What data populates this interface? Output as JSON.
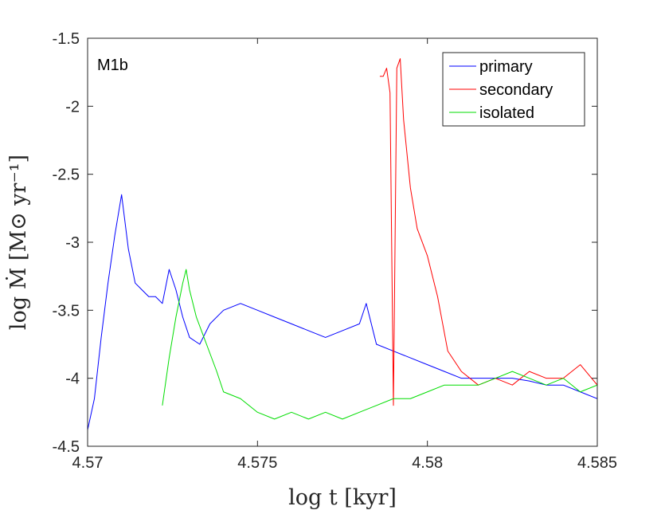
{
  "chart_data": {
    "type": "line",
    "title": "",
    "annotation": "M1b",
    "xlabel": "log t [kyr]",
    "ylabel": "log Ṁ [M⊙ yr⁻¹]",
    "xlim": [
      4.57,
      4.585
    ],
    "ylim": [
      -4.5,
      -1.5
    ],
    "xticks": [
      4.57,
      4.575,
      4.58,
      4.585
    ],
    "xtick_labels": [
      "4.57",
      "4.575",
      "4.58",
      "4.585"
    ],
    "yticks": [
      -1.5,
      -2,
      -2.5,
      -3,
      -3.5,
      -4,
      -4.5
    ],
    "ytick_labels": [
      "-1.5",
      "-2",
      "-2.5",
      "-3",
      "-3.5",
      "-4",
      "-4.5"
    ],
    "grid": false,
    "legend_position": "top-right",
    "series": [
      {
        "name": "primary",
        "color": "#0000ff",
        "x": [
          4.57,
          4.5702,
          4.5704,
          4.5706,
          4.5708,
          4.571,
          4.5712,
          4.5714,
          4.5716,
          4.5718,
          4.572,
          4.5722,
          4.5724,
          4.5726,
          4.5728,
          4.573,
          4.5733,
          4.5736,
          4.574,
          4.5745,
          4.575,
          4.5755,
          4.576,
          4.5765,
          4.577,
          4.5775,
          4.578,
          4.5782,
          4.5785,
          4.579,
          4.5795,
          4.58,
          4.5805,
          4.581,
          4.5815,
          4.582,
          4.5825,
          4.583,
          4.5835,
          4.584,
          4.5845,
          4.585
        ],
        "y": [
          -4.38,
          -4.15,
          -3.7,
          -3.3,
          -2.95,
          -2.65,
          -3.05,
          -3.3,
          -3.35,
          -3.4,
          -3.4,
          -3.45,
          -3.2,
          -3.35,
          -3.55,
          -3.7,
          -3.75,
          -3.6,
          -3.5,
          -3.45,
          -3.5,
          -3.55,
          -3.6,
          -3.65,
          -3.7,
          -3.65,
          -3.6,
          -3.45,
          -3.75,
          -3.8,
          -3.85,
          -3.9,
          -3.95,
          -4.0,
          -4.0,
          -4.0,
          -4.0,
          -4.02,
          -4.05,
          -4.05,
          -4.1,
          -4.15
        ]
      },
      {
        "name": "secondary",
        "color": "#ff0000",
        "x": [
          4.5786,
          4.5787,
          4.5788,
          4.5789,
          4.579,
          4.5791,
          4.5792,
          4.5793,
          4.5795,
          4.5797,
          4.58,
          4.5803,
          4.5806,
          4.581,
          4.5815,
          4.582,
          4.5825,
          4.583,
          4.5835,
          4.584,
          4.5845,
          4.585
        ],
        "y": [
          -1.78,
          -1.78,
          -1.72,
          -1.9,
          -4.2,
          -1.72,
          -1.65,
          -2.1,
          -2.6,
          -2.9,
          -3.1,
          -3.4,
          -3.8,
          -3.95,
          -4.05,
          -4.0,
          -4.05,
          -3.95,
          -4.0,
          -4.0,
          -3.9,
          -4.05
        ]
      },
      {
        "name": "isolated",
        "color": "#00dd00",
        "x": [
          4.5722,
          4.5724,
          4.5726,
          4.5728,
          4.5729,
          4.573,
          4.5732,
          4.5735,
          4.5738,
          4.574,
          4.5745,
          4.575,
          4.5755,
          4.576,
          4.5765,
          4.577,
          4.5775,
          4.578,
          4.5785,
          4.579,
          4.5795,
          4.58,
          4.5805,
          4.581,
          4.5815,
          4.582,
          4.5825,
          4.583,
          4.5835,
          4.584,
          4.5845,
          4.585
        ],
        "y": [
          -4.2,
          -3.85,
          -3.55,
          -3.3,
          -3.2,
          -3.35,
          -3.55,
          -3.75,
          -3.95,
          -4.1,
          -4.15,
          -4.25,
          -4.3,
          -4.25,
          -4.3,
          -4.25,
          -4.3,
          -4.25,
          -4.2,
          -4.15,
          -4.15,
          -4.1,
          -4.05,
          -4.05,
          -4.05,
          -4.0,
          -3.95,
          -4.0,
          -4.05,
          -4.0,
          -4.1,
          -4.05
        ]
      }
    ]
  }
}
